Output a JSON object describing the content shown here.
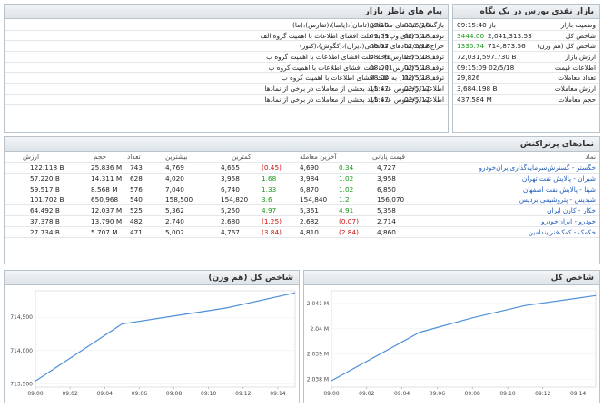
{
  "overview": {
    "title": "بازار نقدی بورس در یک نگاه",
    "rows": [
      {
        "label": "وضعیت بازار",
        "value": "باز 09:15:40",
        "value2": ""
      },
      {
        "label": "شاخص کل",
        "value": "2,041,313.53",
        "value2": "3444.00"
      },
      {
        "label": "شاخص کل (هم وزن)",
        "value": "714,873.56",
        "value2": "1335.74"
      },
      {
        "label": "ارزش بازار",
        "value": "72,031,597.730 B",
        "value2": ""
      },
      {
        "label": "اطلاعات قیمت",
        "value": "09:15:09 02/5/18",
        "value2": ""
      },
      {
        "label": "تعداد معاملات",
        "value": "29,826",
        "value2": ""
      },
      {
        "label": "ارزش معاملات",
        "value": "3,684.198 B",
        "value2": ""
      },
      {
        "label": "حجم معاملات",
        "value": "437.584 M",
        "value2": ""
      }
    ]
  },
  "news": {
    "title": "پیام های ناظر بازار",
    "items": [
      {
        "text": "بازگشایی نمادهای معاملاتی(تامان)،(پاسا)،(تفارس)،(ما)",
        "time": "09:10",
        "date": "02/5/18"
      },
      {
        "text": "توقف نماد (های وپ1) به علت افشای اطلاعات با اهمیت گروه الف",
        "time": "09:09",
        "date": "02/5/18"
      },
      {
        "text": "حراج مجدد نمادهای معاملاتی(دیران)،(کگوش)،(کنور)",
        "time": "09:07",
        "date": "02/5/18"
      },
      {
        "text": "توقف نماد (حفارس1) به علت افشای اطلاعات با اهمیت گروه ب",
        "time": "08:36",
        "date": "02/5/18"
      },
      {
        "text": "توقف نماد (تفارس1) به علت افشای اطلاعات با اهمیت گروه ب",
        "time": "08:00",
        "date": "02/5/18"
      },
      {
        "text": "توقف نماد (ما1) به علت افشای اطلاعات با اهمیت گروه ب",
        "time": "08:00",
        "date": "02/5/18"
      },
      {
        "text": "اطلاعیه درخصوص عدم تایید بخشی از معاملات در برخی از نمادها",
        "time": "15:47",
        "date": "02/5/17"
      },
      {
        "text": "اطلاعیه درخصوص عدم تایید بخشی از معاملات در برخی از نمادها",
        "time": "15:47",
        "date": "02/5/17"
      }
    ]
  },
  "symbols": {
    "title": "نمادهای پرتراکنش",
    "headers": {
      "name": "نماد",
      "final": "قیمت پایانی",
      "last": "آخرین معامله",
      "low": "کمترین",
      "high": "بیشترین",
      "count": "تعداد",
      "volume": "حجم",
      "value": "ارزش"
    },
    "rows": [
      {
        "name": "خگستر - گسترش‌سرمایه‌گذاری‌ایران‌خودرو",
        "final": "4,727",
        "final_chg": "0.34",
        "final_dir": "up",
        "last": "4,690",
        "last_chg": "(0.45)",
        "last_dir": "down",
        "low": "4,655",
        "high": "4,769",
        "count": "743",
        "volume": "25.836 M",
        "value": "122.118 B"
      },
      {
        "name": "شبران - پالایش نفت تهران",
        "final": "3,958",
        "final_chg": "1.02",
        "final_dir": "up",
        "last": "3,984",
        "last_chg": "1.68",
        "last_dir": "up",
        "low": "3,958",
        "high": "4,020",
        "count": "628",
        "volume": "14.311 M",
        "value": "57.220 B"
      },
      {
        "name": "شپنا - پالایش نفت اصفهان",
        "final": "6,850",
        "final_chg": "1.02",
        "final_dir": "up",
        "last": "6,870",
        "last_chg": "1.33",
        "last_dir": "up",
        "low": "6,740",
        "high": "7,040",
        "count": "576",
        "volume": "8.568 M",
        "value": "59.517 B"
      },
      {
        "name": "شبدیس - پتروشیمی بردیس",
        "final": "156,070",
        "final_chg": "1.2",
        "final_dir": "up",
        "last": "154,840",
        "last_chg": "3.6",
        "last_dir": "up",
        "low": "154,820",
        "high": "158,500",
        "count": "540",
        "volume": "650,968",
        "value": "101.702 B"
      },
      {
        "name": "خکار - کارن ایران",
        "final": "5,358",
        "final_chg": "4.91",
        "final_dir": "up",
        "last": "5,361",
        "last_chg": "4.97",
        "last_dir": "up",
        "low": "5,250",
        "high": "5,362",
        "count": "525",
        "volume": "12.037 M",
        "value": "64.492 B"
      },
      {
        "name": "خودرو - ایران‌خودرو",
        "final": "2,714",
        "final_chg": "(0.07)",
        "final_dir": "down",
        "last": "2,682",
        "last_chg": "(1.25)",
        "last_dir": "down",
        "low": "2,680",
        "high": "2,740",
        "count": "482",
        "volume": "13.790 M",
        "value": "37.378 B"
      },
      {
        "name": "خکمک - کمک‌فنرایندامین",
        "final": "4,860",
        "final_chg": "(2.84)",
        "final_dir": "down",
        "last": "4,810",
        "last_chg": "(3.84)",
        "last_dir": "down",
        "low": "4,767",
        "high": "5,002",
        "count": "471",
        "volume": "5.707 M",
        "value": "27.734 B"
      }
    ]
  },
  "chart_data": [
    {
      "type": "line",
      "title": "شاخص کل (هم وزن)",
      "x": [
        "09:00",
        "09:05",
        "09:08",
        "09:11",
        "09:15"
      ],
      "y": [
        713.54,
        714.4,
        714.52,
        714.64,
        714.87
      ],
      "x_ticks": [
        "09:00",
        "09:02",
        "09:04",
        "09:06",
        "09:08",
        "09:10",
        "09:12",
        "09:14"
      ],
      "y_ticks": [
        "713,500",
        "714,000",
        "714,500"
      ],
      "ylim": [
        713.45,
        714.9
      ],
      "color": "#4f8fd8"
    },
    {
      "type": "line",
      "title": "شاخص کل",
      "x": [
        "09:00",
        "09:05",
        "09:08",
        "09:11",
        "09:15"
      ],
      "y": [
        2.03795,
        2.03986,
        2.04043,
        2.04092,
        2.04131
      ],
      "x_ticks": [
        "09:00",
        "09:02",
        "09:04",
        "09:06",
        "09:08",
        "09:10",
        "09:12",
        "09:14"
      ],
      "y_ticks": [
        "2.038 M",
        "2.039 M",
        "2.04 M",
        "2.041 M"
      ],
      "ylim": [
        2.0377,
        2.0415
      ],
      "color": "#4f8fd8"
    }
  ]
}
